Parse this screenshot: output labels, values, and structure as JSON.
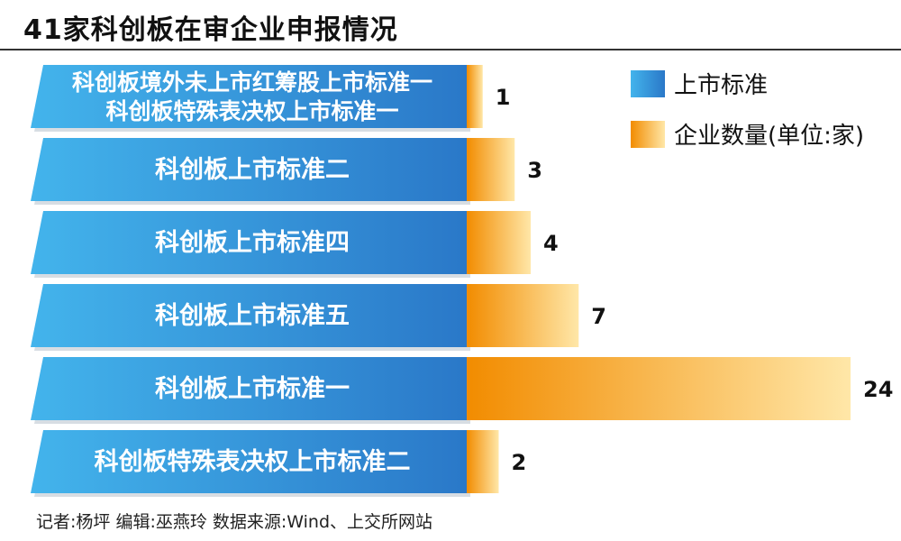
{
  "chart_data": {
    "type": "bar",
    "title": "41家科创板在审企业申报情况",
    "categories": [
      [
        "科创板境外未上市红筹股上市标准一",
        "科创板特殊表决权上市标准一"
      ],
      [
        "科创板上市标准二"
      ],
      [
        "科创板上市标准四"
      ],
      [
        "科创板上市标准五"
      ],
      [
        "科创板上市标准一"
      ],
      [
        "科创板特殊表决权上市标准二"
      ]
    ],
    "values": [
      1,
      3,
      4,
      7,
      24,
      2
    ],
    "xlim": [
      0,
      24
    ],
    "legend": {
      "placement": "top-right",
      "entries": [
        {
          "name": "上市标准",
          "color": "#2f86cf"
        },
        {
          "name": "企业数量(单位:家)",
          "color": "#f5a623"
        }
      ]
    },
    "colors": {
      "category_bar": "#2f86cf",
      "value_bar": "#f5a623",
      "value_bar_light": "#ffe7a8"
    }
  },
  "footer": "记者:杨坪  编辑:巫燕玲  数据来源:Wind、上交所网站"
}
